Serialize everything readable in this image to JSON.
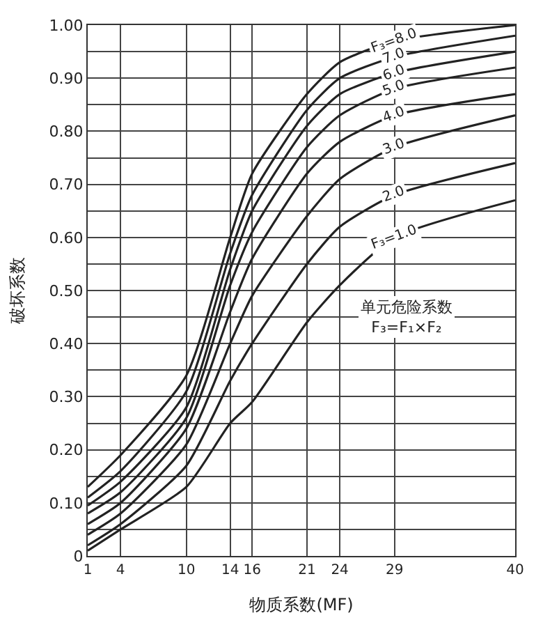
{
  "chart_data": {
    "type": "line",
    "xlabel": "物质系数(MF)",
    "ylabel": "破坏系数",
    "x": [
      1,
      4,
      10,
      14,
      16,
      21,
      24,
      29,
      40
    ],
    "xlim": [
      1,
      40
    ],
    "xticks": [
      1,
      4,
      10,
      14,
      16,
      21,
      24,
      29,
      40
    ],
    "ylim": [
      0,
      1
    ],
    "yticks": [
      0,
      {
        "value": 0.05,
        "label": null
      },
      {
        "value": 0.1,
        "label": "0.10"
      },
      {
        "value": 0.15,
        "label": null
      },
      {
        "value": 0.2,
        "label": "0.20"
      },
      {
        "value": 0.25,
        "label": null
      },
      {
        "value": 0.3,
        "label": "0.30"
      },
      {
        "value": 0.35,
        "label": null
      },
      {
        "value": 0.4,
        "label": "0.40"
      },
      {
        "value": 0.45,
        "label": null
      },
      {
        "value": 0.5,
        "label": "0.50"
      },
      {
        "value": 0.55,
        "label": null
      },
      {
        "value": 0.6,
        "label": "0.60"
      },
      {
        "value": 0.65,
        "label": null
      },
      {
        "value": 0.7,
        "label": "0.70"
      },
      {
        "value": 0.75,
        "label": null
      },
      {
        "value": 0.8,
        "label": "0.80"
      },
      {
        "value": 0.85,
        "label": null
      },
      {
        "value": 0.9,
        "label": "0.90"
      },
      {
        "value": 0.95,
        "label": null
      },
      {
        "value": 1,
        "label": "1.00"
      }
    ],
    "grid": true,
    "legend": false,
    "marker": "none",
    "line_style": "solid",
    "series": [
      {
        "name": "F₃=8.0",
        "color": "#222222",
        "values": [
          0.13,
          0.19,
          0.34,
          0.6,
          0.72,
          0.87,
          0.93,
          0.97,
          1.0
        ]
      },
      {
        "name": "7.0",
        "color": "#222222",
        "values": [
          0.11,
          0.16,
          0.31,
          0.57,
          0.68,
          0.84,
          0.9,
          0.94,
          0.98
        ]
      },
      {
        "name": "6.0",
        "color": "#222222",
        "values": [
          0.095,
          0.14,
          0.28,
          0.54,
          0.65,
          0.81,
          0.87,
          0.91,
          0.95
        ]
      },
      {
        "name": "5.0",
        "color": "#222222",
        "values": [
          0.08,
          0.12,
          0.26,
          0.51,
          0.61,
          0.77,
          0.83,
          0.88,
          0.92
        ]
      },
      {
        "name": "4.0",
        "color": "#222222",
        "values": [
          0.06,
          0.1,
          0.24,
          0.46,
          0.56,
          0.72,
          0.78,
          0.83,
          0.87
        ]
      },
      {
        "name": "3.0",
        "color": "#222222",
        "values": [
          0.04,
          0.08,
          0.21,
          0.4,
          0.49,
          0.64,
          0.71,
          0.77,
          0.83
        ]
      },
      {
        "name": "2.0",
        "color": "#222222",
        "values": [
          0.02,
          0.06,
          0.17,
          0.33,
          0.4,
          0.55,
          0.62,
          0.68,
          0.74
        ]
      },
      {
        "name": "F₃=1.0",
        "color": "#222222",
        "values": [
          0.01,
          0.05,
          0.13,
          0.25,
          0.29,
          0.44,
          0.51,
          0.6,
          0.67
        ]
      }
    ],
    "annotations": [
      "单元危险系数\nF₃=F₁×F₂"
    ]
  }
}
